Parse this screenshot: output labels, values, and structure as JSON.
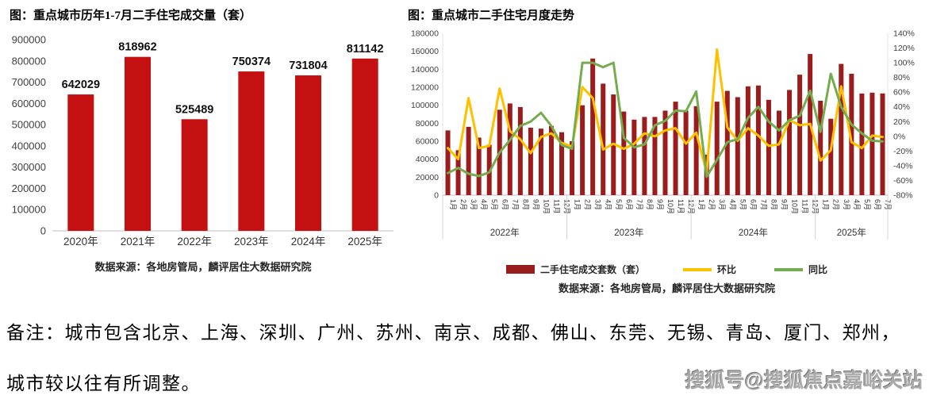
{
  "left_chart": {
    "title": "图：重点城市历年1-7月二手住宅成交量（套）",
    "source": "数据来源：各地房管局，麟评居住大数据研究院",
    "chart_data": {
      "type": "bar",
      "title": "重点城市历年1-7月二手住宅成交量（套）",
      "categories": [
        "2020年",
        "2021年",
        "2022年",
        "2023年",
        "2024年",
        "2025年"
      ],
      "values": [
        642029,
        818962,
        525489,
        750374,
        731804,
        811142
      ],
      "data_labels": [
        "642029",
        "818962",
        "525489",
        "750374",
        "731804",
        "811142"
      ],
      "ylim": [
        0,
        900000
      ],
      "ytick_step": 100000,
      "grid": false,
      "bar_color": "#C41010"
    }
  },
  "right_chart": {
    "title": "图：重点城市二手住宅月度走势",
    "source": "数据来源：各地房管局，麟评居住大数据研究院",
    "legend": [
      {
        "label": "二手住宅成交套数（套）",
        "type": "bar",
        "color": "#9B1C1C"
      },
      {
        "label": "环比",
        "type": "line",
        "color": "#FFC000"
      },
      {
        "label": "同比",
        "type": "line",
        "color": "#74AC4F"
      }
    ],
    "chart_data": {
      "type": "bar+line",
      "title": "重点城市二手住宅月度走势",
      "left_axis": {
        "min": 0,
        "max": 180000,
        "step": 20000,
        "label_for": "二手住宅成交套数（套）"
      },
      "right_axis": {
        "min": -80,
        "max": 140,
        "step": 20,
        "suffix": "%",
        "label_for": "环比/同比"
      },
      "grid": false,
      "legend_position": "bottom",
      "series_meta": [
        {
          "name": "二手住宅成交套数（套）",
          "field": "v",
          "type": "bar",
          "axis": "left",
          "color": "#9B1C1C"
        },
        {
          "name": "环比",
          "field": "mom",
          "type": "line",
          "axis": "right",
          "color": "#FFC000"
        },
        {
          "name": "同比",
          "field": "yoy",
          "type": "line",
          "axis": "right",
          "color": "#74AC4F"
        }
      ],
      "points": [
        {
          "y": "2022年",
          "m": "1月",
          "v": 72000,
          "mom": -16,
          "yoy": -50
        },
        {
          "y": "2022年",
          "m": "2月",
          "v": 50000,
          "mom": -31,
          "yoy": -43
        },
        {
          "y": "2022年",
          "m": "3月",
          "v": 76000,
          "mom": 52,
          "yoy": -51
        },
        {
          "y": "2022年",
          "m": "4月",
          "v": 64000,
          "mom": -16,
          "yoy": -54
        },
        {
          "y": "2022年",
          "m": "5月",
          "v": 56000,
          "mom": -13,
          "yoy": -49
        },
        {
          "y": "2022年",
          "m": "6月",
          "v": 95000,
          "mom": 65,
          "yoy": -22
        },
        {
          "y": "2022年",
          "m": "7月",
          "v": 102000,
          "mom": 7,
          "yoy": -5
        },
        {
          "y": "2022年",
          "m": "8月",
          "v": 98000,
          "mom": -4,
          "yoy": 14
        },
        {
          "y": "2022年",
          "m": "9月",
          "v": 75000,
          "mom": -23,
          "yoy": 20
        },
        {
          "y": "2022年",
          "m": "10月",
          "v": 74000,
          "mom": -1,
          "yoy": 32
        },
        {
          "y": "2022年",
          "m": "11月",
          "v": 77000,
          "mom": 4,
          "yoy": 14
        },
        {
          "y": "2022年",
          "m": "12月",
          "v": 70000,
          "mom": -9,
          "yoy": -12
        },
        {
          "y": "2023年",
          "m": "1月",
          "v": 60000,
          "mom": -14,
          "yoy": -17
        },
        {
          "y": "2023年",
          "m": "2月",
          "v": 100000,
          "mom": 67,
          "yoy": 100
        },
        {
          "y": "2023年",
          "m": "3月",
          "v": 152000,
          "mom": 52,
          "yoy": 100
        },
        {
          "y": "2023年",
          "m": "4月",
          "v": 124000,
          "mom": -18,
          "yoy": 94
        },
        {
          "y": "2023年",
          "m": "5月",
          "v": 112000,
          "mom": -10,
          "yoy": 100
        },
        {
          "y": "2023年",
          "m": "6月",
          "v": 93000,
          "mom": -17,
          "yoy": -2
        },
        {
          "y": "2023年",
          "m": "7月",
          "v": 84000,
          "mom": -10,
          "yoy": -15
        },
        {
          "y": "2023年",
          "m": "8月",
          "v": 87000,
          "mom": 4,
          "yoy": -11
        },
        {
          "y": "2023年",
          "m": "9月",
          "v": 87000,
          "mom": 0,
          "yoy": 15
        },
        {
          "y": "2023年",
          "m": "10月",
          "v": 94000,
          "mom": 8,
          "yoy": 21
        },
        {
          "y": "2023年",
          "m": "11月",
          "v": 104000,
          "mom": 11,
          "yoy": 35
        },
        {
          "y": "2023年",
          "m": "12月",
          "v": 94000,
          "mom": -10,
          "yoy": 34
        },
        {
          "y": "2024年",
          "m": "1月",
          "v": 99000,
          "mom": 5,
          "yoy": 61
        },
        {
          "y": "2024年",
          "m": "2月",
          "v": 45000,
          "mom": -49,
          "yoy": -55
        },
        {
          "y": "2024年",
          "m": "3月",
          "v": 104000,
          "mom": 118,
          "yoy": -32
        },
        {
          "y": "2024年",
          "m": "4月",
          "v": 116000,
          "mom": 12,
          "yoy": -8
        },
        {
          "y": "2024年",
          "m": "5月",
          "v": 109000,
          "mom": -6,
          "yoy": -4
        },
        {
          "y": "2024年",
          "m": "6月",
          "v": 121000,
          "mom": 11,
          "yoy": 25
        },
        {
          "y": "2024年",
          "m": "7月",
          "v": 122000,
          "mom": 1,
          "yoy": 40
        },
        {
          "y": "2024年",
          "m": "8月",
          "v": 106000,
          "mom": -13,
          "yoy": 20
        },
        {
          "y": "2024年",
          "m": "9月",
          "v": 94000,
          "mom": -11,
          "yoy": 8
        },
        {
          "y": "2024年",
          "m": "10月",
          "v": 117000,
          "mom": 22,
          "yoy": 22
        },
        {
          "y": "2024年",
          "m": "11月",
          "v": 134000,
          "mom": 15,
          "yoy": 28
        },
        {
          "y": "2024年",
          "m": "12月",
          "v": 157000,
          "mom": 17,
          "yoy": 62
        },
        {
          "y": "2025年",
          "m": "1月",
          "v": 105000,
          "mom": -33,
          "yoy": 6
        },
        {
          "y": "2025年",
          "m": "2月",
          "v": 85000,
          "mom": -19,
          "yoy": 85
        },
        {
          "y": "2025年",
          "m": "3月",
          "v": 146000,
          "mom": 68,
          "yoy": 40
        },
        {
          "y": "2025年",
          "m": "4月",
          "v": 135000,
          "mom": -8,
          "yoy": 16
        },
        {
          "y": "2025年",
          "m": "5月",
          "v": 113000,
          "mom": -16,
          "yoy": 4
        },
        {
          "y": "2025年",
          "m": "6月",
          "v": 114000,
          "mom": 1,
          "yoy": -6
        },
        {
          "y": "2025年",
          "m": "7月",
          "v": 113142,
          "mom": -1,
          "yoy": -7
        }
      ]
    }
  },
  "note": {
    "line1": "备注：城市包含北京、上海、深圳、广州、苏州、南京、成都、佛山、东莞、无锡、青岛、厦门、郑州，",
    "line2": "城市较以往有所调整。"
  },
  "watermark": {
    "text": "搜狐号@搜狐焦点嘉峪关站"
  },
  "colors": {
    "left_bar": "#C41010",
    "right_bar": "#9B1C1C",
    "mom_line": "#FFC000",
    "yoy_line": "#74AC4F",
    "axis": "#bfbfbf"
  }
}
